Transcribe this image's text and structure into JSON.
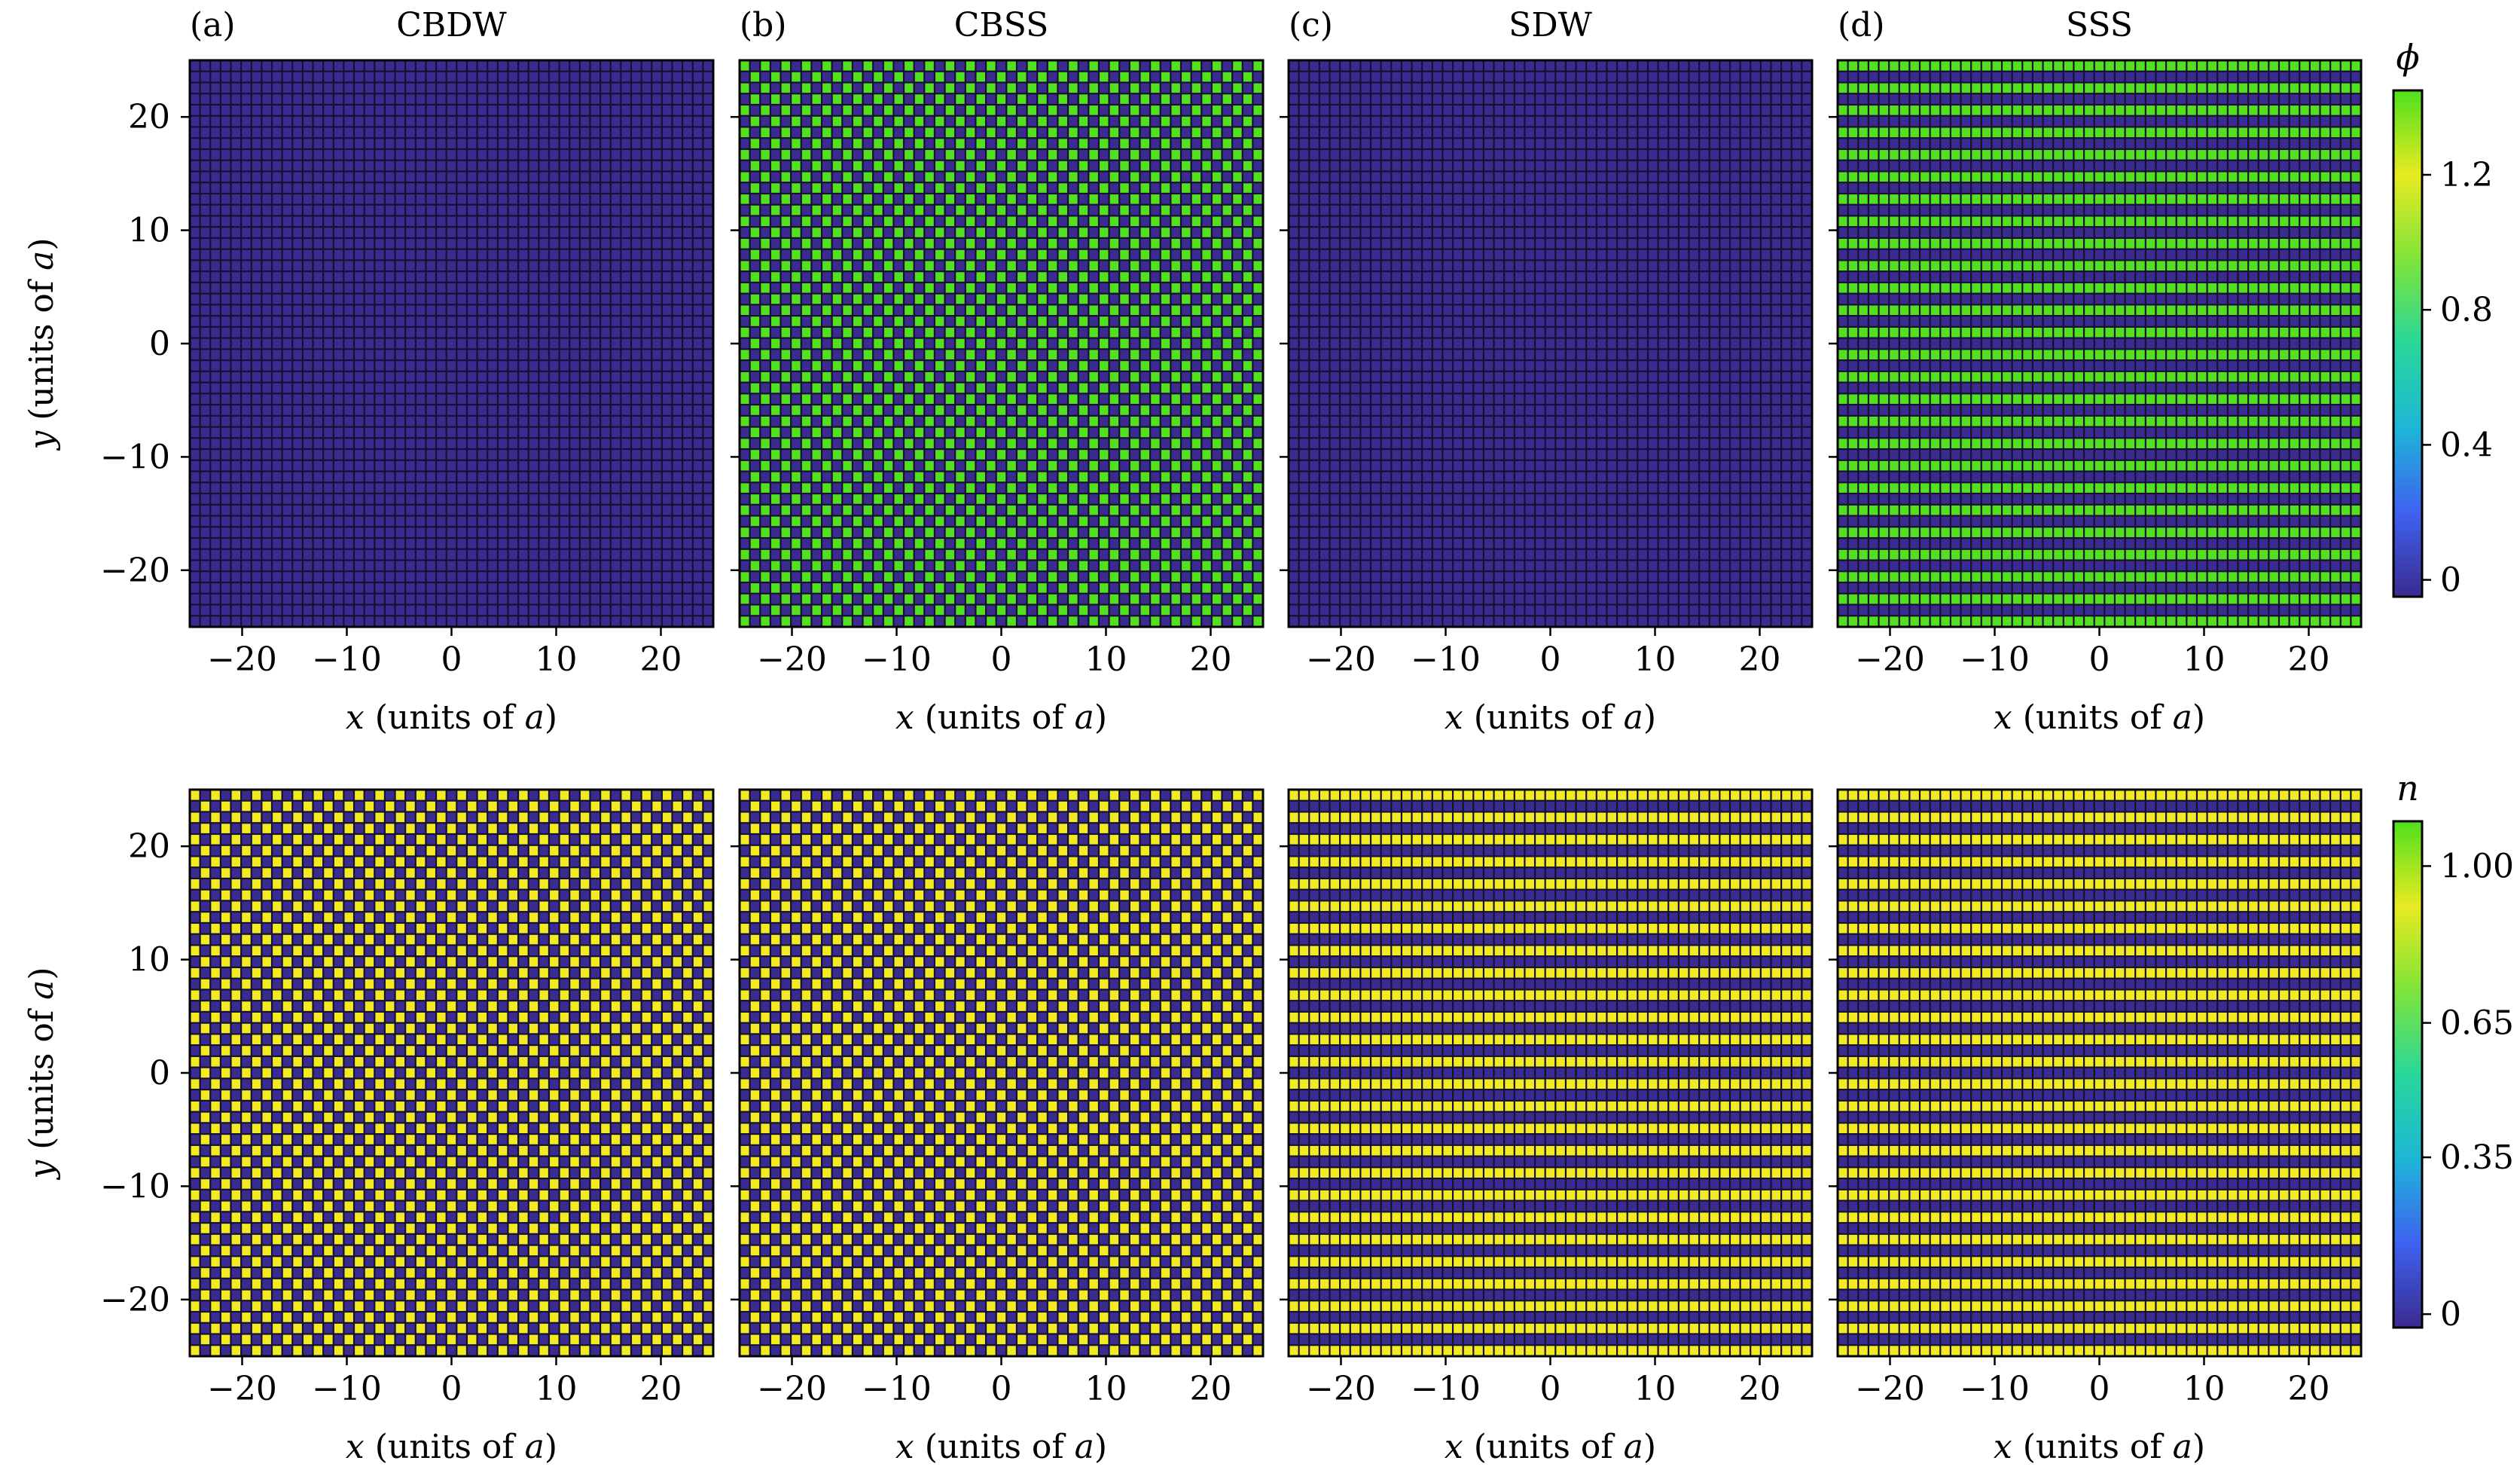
{
  "figure": {
    "colors": {
      "low": "#3b2b8f",
      "grid": "#141132",
      "phi_high": "#52e020",
      "n_high": "#f2ea22"
    },
    "colormap_stops": [
      "#3b2b8f",
      "#3e62f0",
      "#1eb6d6",
      "#29d79a",
      "#7fe43a",
      "#e8ea22",
      "#4fe01e"
    ]
  },
  "chart_data": [
    {
      "type": "heatmap",
      "panel": "(a)",
      "title": "CBDW",
      "quantity": "phi",
      "pattern": "uniform-low",
      "lattice_range": [
        -25,
        25
      ],
      "xlabel": "x (units of a)",
      "ylabel": "y (units of a)",
      "xlim": [
        -25,
        25
      ],
      "ylim": [
        -25,
        25
      ],
      "xticks": [
        -20,
        -10,
        0,
        10,
        20
      ],
      "yticks": [
        -20,
        -10,
        0,
        10,
        20
      ]
    },
    {
      "type": "heatmap",
      "panel": "(b)",
      "title": "CBSS",
      "quantity": "phi",
      "pattern": "checkerboard",
      "lattice_range": [
        -25,
        25
      ],
      "xlabel": "x (units of a)",
      "xlim": [
        -25,
        25
      ],
      "ylim": [
        -25,
        25
      ],
      "xticks": [
        -20,
        -10,
        0,
        10,
        20
      ]
    },
    {
      "type": "heatmap",
      "panel": "(c)",
      "title": "SDW",
      "quantity": "phi",
      "pattern": "uniform-low",
      "lattice_range": [
        -25,
        25
      ],
      "xlabel": "x (units of a)",
      "xlim": [
        -25,
        25
      ],
      "ylim": [
        -25,
        25
      ],
      "xticks": [
        -20,
        -10,
        0,
        10,
        20
      ]
    },
    {
      "type": "heatmap",
      "panel": "(d)",
      "title": "SSS",
      "quantity": "phi",
      "pattern": "stripes",
      "lattice_range": [
        -25,
        25
      ],
      "xlabel": "x (units of a)",
      "xlim": [
        -25,
        25
      ],
      "ylim": [
        -25,
        25
      ],
      "xticks": [
        -20,
        -10,
        0,
        10,
        20
      ]
    },
    {
      "type": "heatmap",
      "panel": "(a)",
      "quantity": "n",
      "pattern": "checkerboard",
      "lattice_range": [
        -25,
        25
      ],
      "xlabel": "x (units of a)",
      "ylabel": "y (units of a)",
      "xlim": [
        -25,
        25
      ],
      "ylim": [
        -25,
        25
      ],
      "xticks": [
        -20,
        -10,
        0,
        10,
        20
      ],
      "yticks": [
        -20,
        -10,
        0,
        10,
        20
      ]
    },
    {
      "type": "heatmap",
      "panel": "(b)",
      "quantity": "n",
      "pattern": "checkerboard",
      "lattice_range": [
        -25,
        25
      ],
      "xlabel": "x (units of a)",
      "xlim": [
        -25,
        25
      ],
      "ylim": [
        -25,
        25
      ],
      "xticks": [
        -20,
        -10,
        0,
        10,
        20
      ]
    },
    {
      "type": "heatmap",
      "panel": "(c)",
      "quantity": "n",
      "pattern": "stripes",
      "lattice_range": [
        -25,
        25
      ],
      "xlabel": "x (units of a)",
      "xlim": [
        -25,
        25
      ],
      "ylim": [
        -25,
        25
      ],
      "xticks": [
        -20,
        -10,
        0,
        10,
        20
      ]
    },
    {
      "type": "heatmap",
      "panel": "(d)",
      "quantity": "n",
      "pattern": "stripes",
      "lattice_range": [
        -25,
        25
      ],
      "xlabel": "x (units of a)",
      "xlim": [
        -25,
        25
      ],
      "ylim": [
        -25,
        25
      ],
      "xticks": [
        -20,
        -10,
        0,
        10,
        20
      ]
    }
  ],
  "colorbars": [
    {
      "label": "ϕ",
      "range": [
        -0.05,
        1.45
      ],
      "ticks": [
        0,
        0.4,
        0.8,
        1.2
      ],
      "tick_labels": [
        "0",
        "0.4",
        "0.8",
        "1.2"
      ]
    },
    {
      "label": "n",
      "range": [
        -0.03,
        1.1
      ],
      "ticks": [
        0,
        0.35,
        0.65,
        1.0
      ],
      "tick_labels": [
        "0",
        "0.35",
        "0.65",
        "1.00"
      ]
    }
  ]
}
